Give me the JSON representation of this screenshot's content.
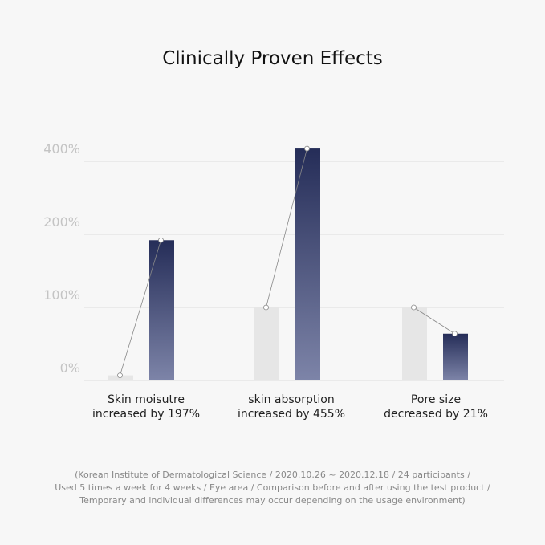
{
  "chart_data": {
    "type": "bar",
    "title": "Clinically Proven Effects",
    "categories": [
      "Skin moisutre\nincreased by 197%",
      "skin absorption\nincreased by 455%",
      "Pore size\ndecreased by 21%"
    ],
    "category_lines": [
      [
        "Skin moisutre",
        "increased by 197%"
      ],
      [
        "skin absorption",
        "increased by 455%"
      ],
      [
        "Pore size",
        "decreased by 21%"
      ]
    ],
    "series": [
      {
        "values": [
          7,
          100,
          100
        ],
        "color": "#e6e6e6"
      },
      {
        "values": [
          192,
          435,
          64
        ],
        "color_top": "#252d58",
        "color_bottom": "#7d84a8"
      }
    ],
    "yticks": [
      {
        "value": 0,
        "label": "0%"
      },
      {
        "value": 100,
        "label": "100%"
      },
      {
        "value": 200,
        "label": "200%"
      },
      {
        "value": 400,
        "label": "400%"
      }
    ],
    "y_scale": "non-linear (piecewise between ticks)",
    "grid": true,
    "connector_lines": true
  },
  "footnote": {
    "lines": [
      "(Korean Institute of Dermatological Science / 2020.10.26 ~ 2020.12.18 / 24 participants /",
      "Used 5 times a week for 4 weeks / Eye area / Comparison before and after using the test product /",
      "Temporary and individual differences may occur depending on the usage environment)"
    ]
  }
}
